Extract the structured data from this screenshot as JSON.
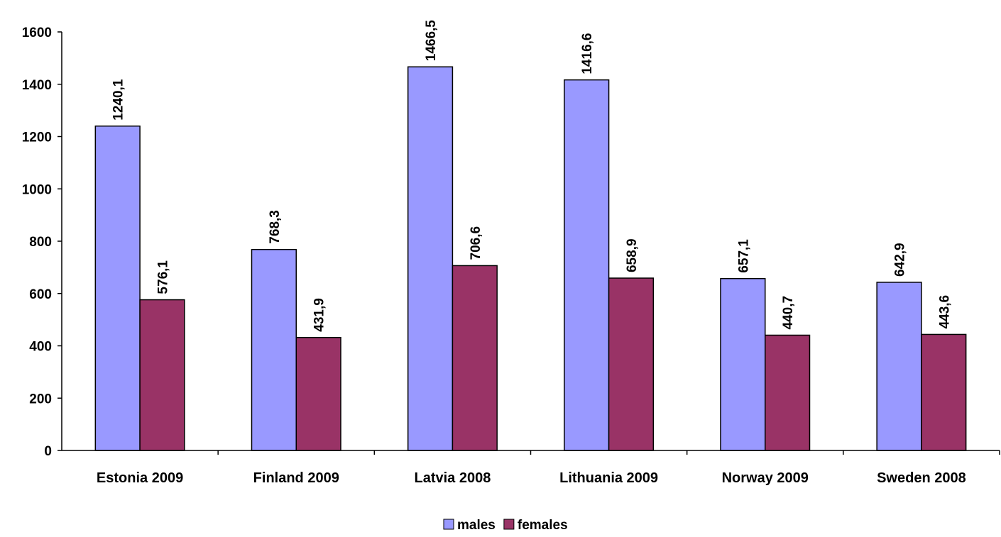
{
  "chart_data": {
    "type": "bar",
    "categories": [
      "Estonia 2009",
      "Finland 2009",
      "Latvia 2008",
      "Lithuania 2009",
      "Norway 2009",
      "Sweden 2008"
    ],
    "series": [
      {
        "name": "males",
        "color": "#9999ff",
        "values": [
          1240.1,
          768.3,
          1466.5,
          1416.6,
          657.1,
          642.9
        ],
        "value_labels": [
          "1240,1",
          "768,3",
          "1466,5",
          "1416,6",
          "657,1",
          "642,9"
        ]
      },
      {
        "name": "females",
        "color": "#993366",
        "values": [
          576.1,
          431.9,
          706.6,
          658.9,
          440.7,
          443.6
        ],
        "value_labels": [
          "576,1",
          "431,9",
          "706,6",
          "658,9",
          "440,7",
          "443,6"
        ]
      }
    ],
    "ylim": [
      0,
      1600
    ],
    "yticks": [
      0,
      200,
      400,
      600,
      800,
      1000,
      1200,
      1400,
      1600
    ],
    "grid": false,
    "legend": "bottom"
  }
}
